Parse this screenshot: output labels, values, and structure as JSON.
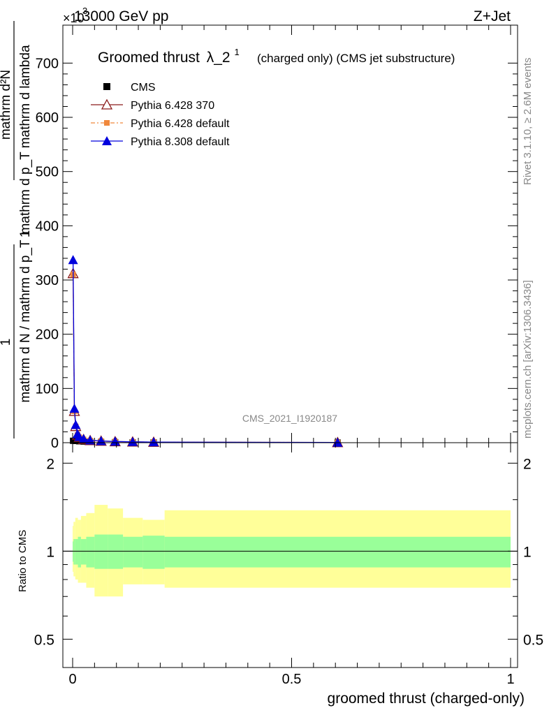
{
  "header": {
    "energy_label": "13000 GeV pp",
    "process_label": "Z+Jet",
    "exponent_label": "×10",
    "exponent_power": "3"
  },
  "side_labels": {
    "rivet": "Rivet 3.1.10, ≥ 2.6M events",
    "mcplots": "mcplots.cern.ch [arXiv:1306.3436]"
  },
  "chart_data": [
    {
      "type": "line",
      "title": "Groomed thrust",
      "title_lambda": "λ_2",
      "title_sup": "1",
      "subtitle": "(charged only) (CMS jet substructure)",
      "watermark": "CMS_2021_I1920187",
      "ylabel": {
        "numerator": "mathrm d²N",
        "denominator": "mathrm d p_T mathrm d lambda",
        "prefix_num": "1",
        "prefix_den": "mathrm d N / mathrm d p_T"
      },
      "xlim": [
        0,
        1
      ],
      "ylim": [
        0,
        770
      ],
      "y_unit_scale": 1000,
      "y_ticks": [
        0,
        100,
        200,
        300,
        400,
        500,
        600,
        700
      ],
      "x_ticks": [
        0,
        0.5,
        1
      ],
      "x_tick_labels": [
        "0",
        "0.5",
        "1"
      ],
      "legend_position": "top-left",
      "series": [
        {
          "name": "CMS",
          "color": "#000000",
          "marker": "square",
          "x": [
            0.001,
            0.008,
            0.015,
            0.025,
            0.04,
            0.065,
            0.097,
            0.137,
            0.185,
            0.605
          ],
          "y": [
            3.5,
            3.2,
            2.6,
            2.1,
            1.6,
            1.2,
            0.9,
            0.7,
            0.5,
            0.3
          ]
        },
        {
          "name": "Pythia 6.428 370",
          "color": "#8b1a1a",
          "marker": "open-triangle",
          "x": [
            0.001,
            0.004,
            0.007,
            0.011,
            0.015,
            0.025,
            0.04,
            0.065,
            0.097,
            0.137,
            0.185,
            0.605
          ],
          "y": [
            312,
            58,
            30,
            14,
            10,
            6,
            4,
            3,
            2,
            1.5,
            1,
            0.4
          ]
        },
        {
          "name": "Pythia 6.428 default",
          "color": "#f0883c",
          "marker": "square",
          "x": [
            0.001,
            0.004,
            0.007,
            0.011,
            0.015,
            0.025,
            0.04,
            0.065,
            0.097,
            0.137,
            0.185,
            0.605
          ],
          "y": [
            310,
            58,
            30,
            14,
            10,
            6,
            4,
            3,
            2,
            1.5,
            1,
            0.4
          ]
        },
        {
          "name": "Pythia 8.308 default",
          "color": "#0000dd",
          "marker": "filled-triangle",
          "x": [
            0.001,
            0.004,
            0.007,
            0.011,
            0.015,
            0.025,
            0.04,
            0.065,
            0.097,
            0.137,
            0.185,
            0.605
          ],
          "y": [
            337,
            63,
            33,
            16,
            11,
            7,
            4.5,
            3.2,
            2.2,
            1.6,
            1.1,
            0.4
          ]
        }
      ]
    },
    {
      "type": "area",
      "ylabel": "Ratio to CMS",
      "xlabel": "groomed thrust (charged-only)",
      "xlim": [
        0,
        1
      ],
      "ylim": [
        0.4,
        2.35
      ],
      "y_scale": "log",
      "y_ticks": [
        0.5,
        1,
        2
      ],
      "y_tick_labels": [
        "0.5",
        "1",
        "2"
      ],
      "x_ticks": [
        0,
        0.5,
        1
      ],
      "x_tick_labels": [
        "0",
        "0.5",
        "1"
      ],
      "reference_line": 1,
      "bins": [
        0,
        0.002,
        0.006,
        0.012,
        0.019,
        0.031,
        0.05,
        0.08,
        0.115,
        0.16,
        0.21,
        1.0
      ],
      "stat_band": {
        "color": "#99ff99",
        "lo": [
          0.92,
          0.9,
          0.9,
          0.88,
          0.9,
          0.88,
          0.87,
          0.87,
          0.88,
          0.87,
          0.88
        ],
        "hi": [
          1.08,
          1.1,
          1.1,
          1.12,
          1.1,
          1.12,
          1.14,
          1.14,
          1.12,
          1.13,
          1.12
        ]
      },
      "total_band": {
        "color": "#ffff99",
        "lo": [
          0.85,
          0.82,
          0.8,
          0.78,
          0.78,
          0.75,
          0.7,
          0.7,
          0.77,
          0.77,
          0.75
        ],
        "hi": [
          1.22,
          1.26,
          1.3,
          1.28,
          1.32,
          1.35,
          1.44,
          1.4,
          1.3,
          1.28,
          1.38
        ]
      }
    }
  ]
}
